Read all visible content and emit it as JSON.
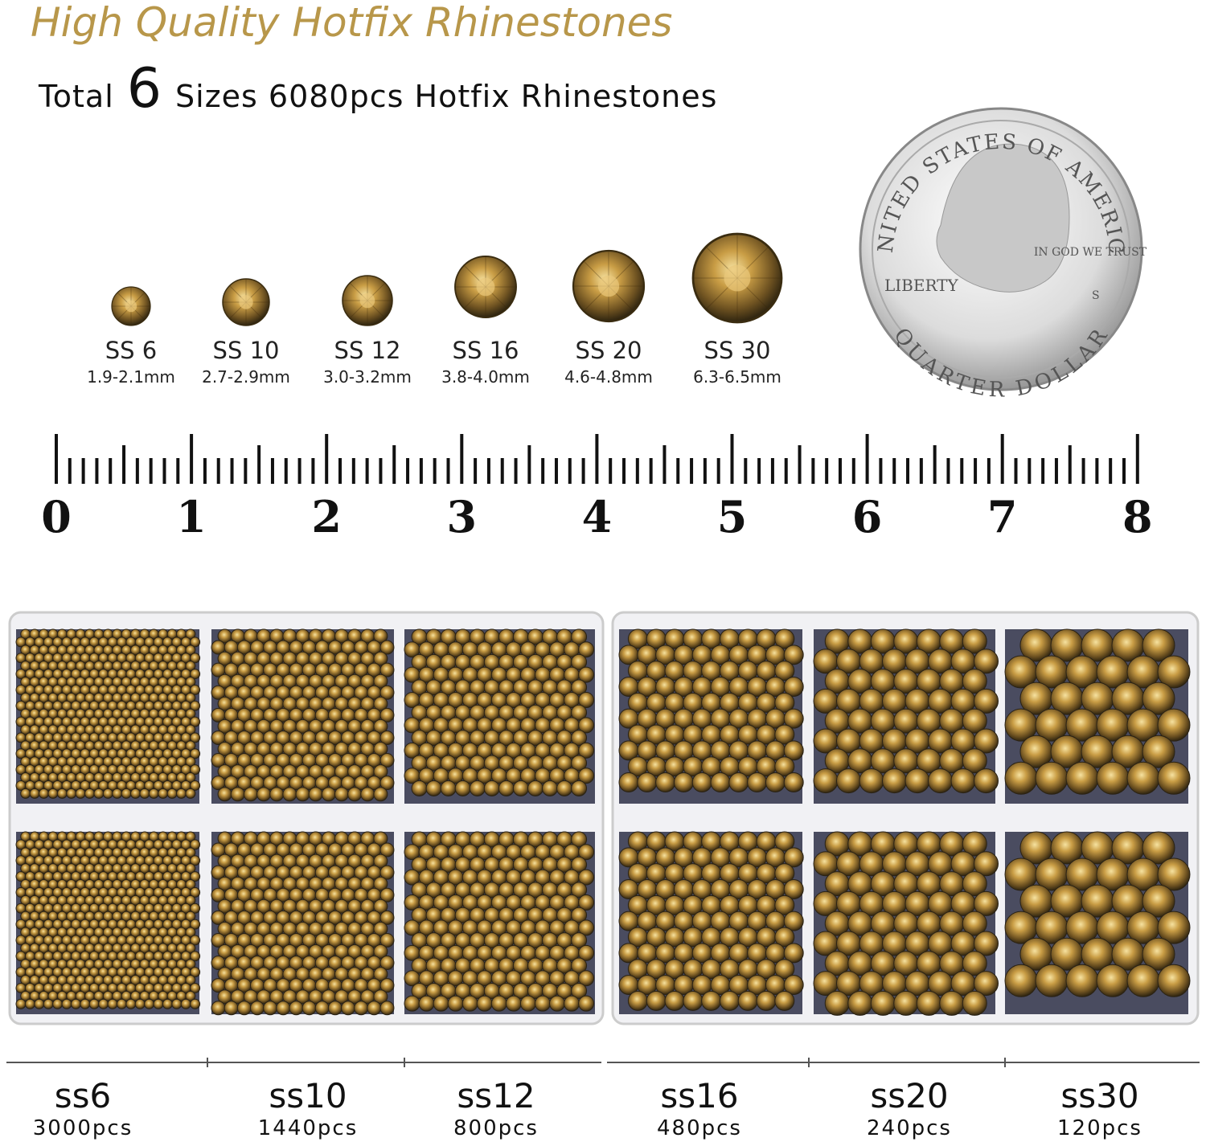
{
  "header": {
    "title": "High Quality Hotfix Rhinestones",
    "subtitle": {
      "before": "Total",
      "number": "6",
      "after": "Sizes 6080pcs Hotfix Rhinestones"
    }
  },
  "sizes": [
    {
      "label": "SS 6",
      "range": "1.9-2.1mm"
    },
    {
      "label": "SS 10",
      "range": "2.7-2.9mm"
    },
    {
      "label": "SS 12",
      "range": "3.0-3.2mm"
    },
    {
      "label": "SS 16",
      "range": "3.8-4.0mm"
    },
    {
      "label": "SS 20",
      "range": "4.6-4.8mm"
    },
    {
      "label": "SS 30",
      "range": "6.3-6.5mm"
    }
  ],
  "coin": {
    "top": "UNITED STATES OF AMERICA",
    "motto": "IN GOD WE TRUST",
    "left": "LIBERTY",
    "mint": "S",
    "bottom": "QUARTER DOLLAR"
  },
  "ruler": {
    "labels": [
      0,
      1,
      2,
      3,
      4,
      5,
      6,
      7,
      8
    ]
  },
  "contents": [
    {
      "name": "ss6",
      "count": "3000pcs"
    },
    {
      "name": "ss10",
      "count": "1440pcs"
    },
    {
      "name": "ss12",
      "count": "800pcs"
    },
    {
      "name": "ss16",
      "count": "480pcs"
    },
    {
      "name": "ss20",
      "count": "240pcs"
    },
    {
      "name": "ss30",
      "count": "120pcs"
    }
  ]
}
